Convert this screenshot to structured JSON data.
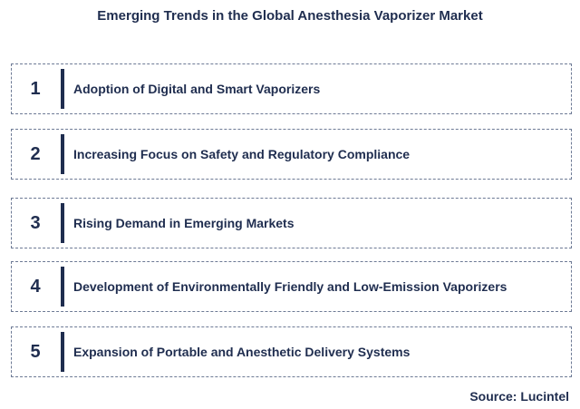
{
  "title": "Emerging Trends in the Global Anesthesia Vaporizer Market",
  "items": [
    {
      "number": "1",
      "label": "Adoption of Digital and Smart Vaporizers"
    },
    {
      "number": "2",
      "label": "Increasing Focus on Safety and Regulatory Compliance"
    },
    {
      "number": "3",
      "label": "Rising Demand in Emerging Markets"
    },
    {
      "number": "4",
      "label": "Development of Environmentally Friendly and Low-Emission Vaporizers"
    },
    {
      "number": "5",
      "label": "Expansion of Portable and Anesthetic Delivery Systems"
    }
  ],
  "source": "Source: Lucintel"
}
